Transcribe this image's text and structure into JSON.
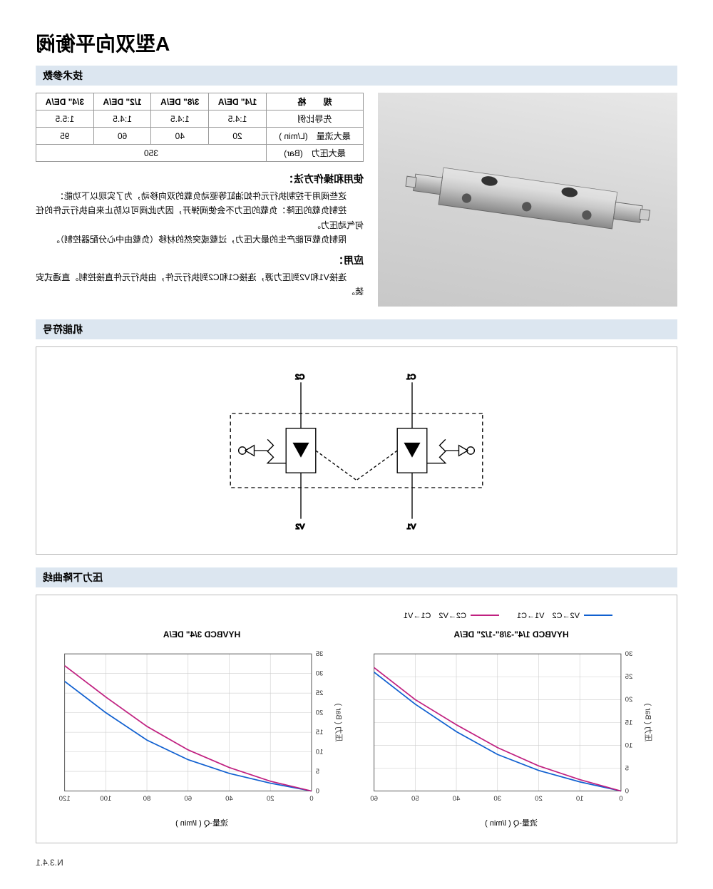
{
  "page_code": "N.3.4.1",
  "title": "A型双向平衡阀",
  "sections": {
    "tech_params": "技术参数",
    "symbol": "机能符号",
    "curve": "压力下降曲线"
  },
  "spec_table": {
    "headers": [
      "规　　格",
      "1/4\" DE/A",
      "3/8\" DE/A",
      "1/2\" DE/A",
      "3/4\" DE/A"
    ],
    "rows": [
      {
        "label": "先导比例",
        "cells": [
          "1:4.5",
          "1:4.5",
          "1:4.5",
          "1:5.5"
        ]
      },
      {
        "label": "最大流量　(L/min )",
        "cells": [
          "20",
          "40",
          "60",
          "95"
        ]
      },
      {
        "label": "最大压力　(Bar)",
        "cells_merged": "350"
      }
    ]
  },
  "usage": {
    "title1": "使用和操作方法：",
    "p1": "这些阀用于控制执行元件如油缸等驱动负载的双向移动，为了实现以下功能：",
    "p2": "控制负载的压降：负载的压力不会使阀弹开，因为此阀可以防止来自执行元件的任何气动压力。",
    "p3": "限制负载可能产生的最大压力，过载或突然的材移（负载由中心分配器控制）。",
    "title2": "应用：",
    "p4": "连接V1和V2到压力源，连接C1和C2到执行元件，由执行元件直接控制。直通式安装。"
  },
  "symbol_labels": {
    "c1": "C1",
    "c2": "C2",
    "v1": "V1",
    "v2": "V2"
  },
  "legend": {
    "line1": {
      "label": "V2→C2　V1→C1",
      "color": "#1060d0"
    },
    "line2": {
      "label": "C2→V2　C1→V1",
      "color": "#c02080"
    }
  },
  "chart1": {
    "title": "HYVBCD 1/4\"-3/8\"-1/2\" DE/A",
    "y_label": "压力 ( Bar )",
    "x_label": "流量-Q ( l/min )",
    "x_ticks": [
      0,
      10,
      20,
      30,
      40,
      50,
      60
    ],
    "y_ticks": [
      0,
      5,
      10,
      15,
      20,
      25,
      30
    ],
    "x_max": 60,
    "y_max": 30,
    "series1": [
      [
        0,
        0
      ],
      [
        10,
        2
      ],
      [
        20,
        4.5
      ],
      [
        30,
        8
      ],
      [
        40,
        13
      ],
      [
        50,
        19
      ],
      [
        60,
        26
      ]
    ],
    "series2": [
      [
        0,
        0
      ],
      [
        10,
        2.5
      ],
      [
        20,
        5.5
      ],
      [
        30,
        9.5
      ],
      [
        40,
        14.5
      ],
      [
        50,
        20
      ],
      [
        60,
        27
      ]
    ]
  },
  "chart2": {
    "title": "HYVBCD 3/4\" DE/A",
    "y_label": "压力 ( Bar )",
    "x_label": "流量-Q ( l/min )",
    "x_ticks": [
      0,
      20,
      40,
      60,
      80,
      100,
      120
    ],
    "y_ticks": [
      0,
      5,
      10,
      15,
      20,
      25,
      30,
      35
    ],
    "x_max": 120,
    "y_max": 35,
    "series1": [
      [
        0,
        0
      ],
      [
        20,
        2
      ],
      [
        40,
        4.5
      ],
      [
        60,
        8
      ],
      [
        80,
        13
      ],
      [
        100,
        20
      ],
      [
        120,
        28
      ]
    ],
    "series2": [
      [
        0,
        0
      ],
      [
        20,
        2.5
      ],
      [
        40,
        6
      ],
      [
        60,
        10.5
      ],
      [
        80,
        16.5
      ],
      [
        100,
        24
      ],
      [
        120,
        32
      ]
    ]
  },
  "colors": {
    "header_bg": "#dce6f0",
    "border": "#bbbbbb",
    "grid": "#cccccc",
    "blue": "#1060d0",
    "magenta": "#c02080"
  }
}
